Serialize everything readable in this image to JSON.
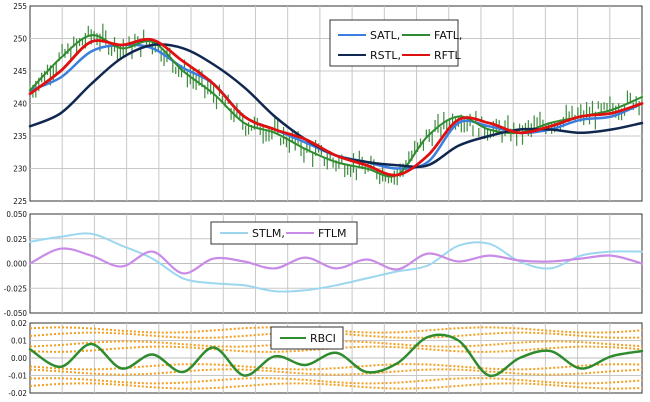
{
  "chart_data": [
    {
      "type": "line",
      "ylim": [
        225,
        255
      ],
      "yticks": [
        "255",
        "250",
        "245",
        "240",
        "235",
        "230",
        "225"
      ],
      "grid": true,
      "legend_placement": "top-right",
      "legend": [
        {
          "name": "SATL,",
          "color": "#3a7fe0"
        },
        {
          "name": "FATL,",
          "color": "#2e8b2e"
        },
        {
          "name": "RSTL,",
          "color": "#10284f"
        },
        {
          "name": "RFTL",
          "color": "#e01010"
        }
      ],
      "price_color": "#3c8a3c",
      "x": [
        0,
        5,
        10,
        15,
        20,
        25,
        30,
        35,
        40,
        45,
        50,
        55,
        60,
        65,
        70,
        75,
        80,
        85,
        90,
        95,
        100
      ],
      "series": [
        {
          "name": "SATL,",
          "values": [
            242,
            244,
            248,
            249,
            248.5,
            245.5,
            243,
            238,
            236,
            234,
            232,
            231,
            230,
            231,
            237,
            236.5,
            235.5,
            236,
            237.5,
            238,
            240
          ]
        },
        {
          "name": "FATL,",
          "values": [
            242,
            247,
            250.5,
            248.5,
            249.5,
            245,
            241.5,
            237,
            235.5,
            233,
            231,
            230,
            229,
            235,
            238,
            236,
            235.5,
            237,
            238,
            239,
            241
          ]
        },
        {
          "name": "RSTL,",
          "values": [
            236.5,
            238.5,
            243,
            247,
            249,
            248.5,
            246,
            242.5,
            238,
            234.5,
            232,
            231,
            230.5,
            230.5,
            233.5,
            235,
            236,
            236,
            235.5,
            236,
            237
          ]
        },
        {
          "name": "RFTL",
          "values": [
            241.5,
            245,
            249.5,
            249,
            249.8,
            246.5,
            243,
            238,
            236,
            234.5,
            232,
            230.5,
            229,
            232,
            237.5,
            237,
            235.5,
            236.5,
            238,
            238.5,
            240
          ]
        }
      ]
    },
    {
      "type": "line",
      "ylim": [
        -0.05,
        0.05
      ],
      "yticks": [
        "0.050",
        "0.025",
        "0.000",
        "-0.025",
        "-0.050"
      ],
      "grid": true,
      "legend_placement": "top-center",
      "legend": [
        {
          "name": "STLM,",
          "color": "#9cd7ef"
        },
        {
          "name": "FTLM",
          "color": "#c98be8"
        }
      ],
      "x": [
        0,
        5,
        10,
        15,
        20,
        25,
        30,
        35,
        40,
        45,
        50,
        55,
        60,
        65,
        70,
        75,
        80,
        85,
        90,
        95,
        100
      ],
      "series": [
        {
          "name": "STLM,",
          "values": [
            0.022,
            0.027,
            0.03,
            0.018,
            0.005,
            -0.015,
            -0.02,
            -0.022,
            -0.028,
            -0.027,
            -0.022,
            -0.015,
            -0.008,
            -0.002,
            0.018,
            0.02,
            0.002,
            -0.005,
            0.008,
            0.012,
            0.012
          ]
        },
        {
          "name": "FTLM",
          "values": [
            0,
            0.015,
            0.008,
            -0.003,
            0.012,
            -0.01,
            0.005,
            0.002,
            -0.005,
            0.006,
            -0.005,
            0.004,
            -0.006,
            0.01,
            0.002,
            0.008,
            0.003,
            0.002,
            0.005,
            0.008,
            0
          ]
        }
      ]
    },
    {
      "type": "line",
      "ylim": [
        -0.02,
        0.02
      ],
      "yticks": [
        "0.02",
        "0.01",
        "0.00",
        "-0.01",
        "-0.02"
      ],
      "grid": true,
      "legend_placement": "top-center",
      "legend": [
        {
          "name": "RBCI",
          "color": "#2e8b2e"
        }
      ],
      "bands_color": "#f0a020",
      "x": [
        0,
        5,
        10,
        15,
        20,
        25,
        30,
        35,
        40,
        45,
        50,
        55,
        60,
        65,
        70,
        75,
        80,
        85,
        90,
        95,
        100
      ],
      "series": [
        {
          "name": "RBCI",
          "values": [
            0.005,
            -0.005,
            0.008,
            -0.006,
            0.002,
            -0.008,
            0.006,
            -0.01,
            0.001,
            -0.004,
            0.003,
            -0.008,
            -0.003,
            0.012,
            0.01,
            -0.01,
            0,
            0.004,
            -0.006,
            0.001,
            0.004
          ]
        }
      ]
    }
  ]
}
